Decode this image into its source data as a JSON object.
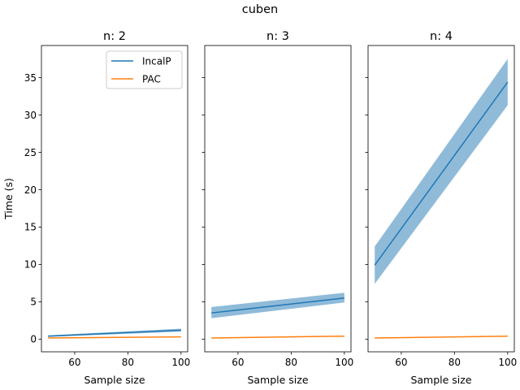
{
  "figure": {
    "suptitle": "cuben"
  },
  "chart_data": [
    {
      "type": "line",
      "title": "n: 2",
      "xlabel": "Sample size",
      "ylabel": "Time (s)",
      "xlim": [
        47.5,
        102.5
      ],
      "ylim": [
        -1.7,
        39.3
      ],
      "xticks": [
        60,
        80,
        100
      ],
      "yticks": [
        0,
        5,
        10,
        15,
        20,
        25,
        30,
        35
      ],
      "legend": "top-right",
      "series": [
        {
          "name": "IncalP",
          "color": "#1f77b4",
          "x": [
            50,
            100
          ],
          "y": [
            0.4,
            1.2
          ],
          "band_low": [
            0.3,
            1.0
          ],
          "band_high": [
            0.5,
            1.4
          ]
        },
        {
          "name": "PAC",
          "color": "#ff7f0e",
          "x": [
            50,
            100
          ],
          "y": [
            0.15,
            0.3
          ],
          "band_low": [
            0.12,
            0.26
          ],
          "band_high": [
            0.18,
            0.34
          ]
        }
      ]
    },
    {
      "type": "line",
      "title": "n: 3",
      "xlabel": "Sample size",
      "ylabel": "",
      "xlim": [
        47.5,
        102.5
      ],
      "ylim": [
        -1.7,
        39.3
      ],
      "xticks": [
        60,
        80,
        100
      ],
      "yticks": [
        0,
        5,
        10,
        15,
        20,
        25,
        30,
        35
      ],
      "series": [
        {
          "color": "#1f77b4",
          "x": [
            50,
            100
          ],
          "y": [
            3.5,
            5.5
          ],
          "band_low": [
            2.8,
            4.9
          ],
          "band_high": [
            4.3,
            6.2
          ]
        },
        {
          "color": "#ff7f0e",
          "x": [
            50,
            100
          ],
          "y": [
            0.15,
            0.4
          ],
          "band_low": [
            0.12,
            0.35
          ],
          "band_high": [
            0.18,
            0.45
          ]
        }
      ]
    },
    {
      "type": "line",
      "title": "n: 4",
      "xlabel": "Sample size",
      "ylabel": "",
      "xlim": [
        47.5,
        102.5
      ],
      "ylim": [
        -1.7,
        39.3
      ],
      "xticks": [
        60,
        80,
        100
      ],
      "yticks": [
        0,
        5,
        10,
        15,
        20,
        25,
        30,
        35
      ],
      "series": [
        {
          "color": "#1f77b4",
          "x": [
            50,
            100
          ],
          "y": [
            9.9,
            34.4
          ],
          "band_low": [
            7.4,
            31.3
          ],
          "band_high": [
            12.4,
            37.5
          ]
        },
        {
          "color": "#ff7f0e",
          "x": [
            50,
            100
          ],
          "y": [
            0.15,
            0.4
          ],
          "band_low": [
            0.12,
            0.35
          ],
          "band_high": [
            0.18,
            0.45
          ]
        }
      ]
    }
  ]
}
